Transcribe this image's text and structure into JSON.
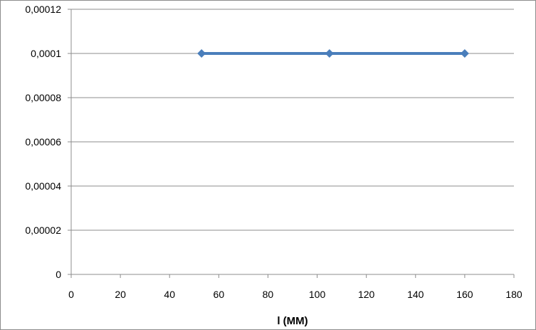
{
  "chart_data": {
    "type": "line",
    "title": "",
    "xlabel": "l (MM)",
    "ylabel": "",
    "xlim": [
      0,
      180
    ],
    "ylim": [
      0,
      0.00012
    ],
    "x_ticks": [
      "0",
      "20",
      "40",
      "60",
      "80",
      "100",
      "120",
      "140",
      "160",
      "180"
    ],
    "y_ticks": [
      "0",
      "0,00002",
      "0,00004",
      "0,00006",
      "0,00008",
      "0,0001",
      "0,00012"
    ],
    "grid": "horizontal",
    "legend": "none",
    "series": [
      {
        "color": "#4a7ebb",
        "marker": "diamond",
        "x": [
          53,
          105,
          160
        ],
        "y": [
          0.0001,
          0.0001,
          0.0001
        ]
      }
    ]
  }
}
